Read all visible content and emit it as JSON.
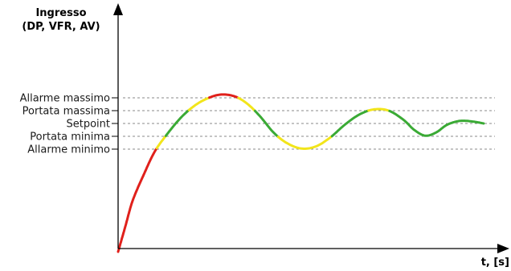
{
  "y_axis": {
    "title_line1": "Ingresso",
    "title_line2": "(DP, VFR, AV)"
  },
  "x_axis": {
    "title": "t, [s]"
  },
  "thresholds": [
    {
      "key": "allarme-massimo",
      "label": "Allarme massimo",
      "value": 4
    },
    {
      "key": "portata-massima",
      "label": "Portata massima",
      "value": 3
    },
    {
      "key": "setpoint",
      "label": "Setpoint",
      "value": 2
    },
    {
      "key": "portata-minima",
      "label": "Portata minima",
      "value": 1
    },
    {
      "key": "allarme-minimo",
      "label": "Allarme minimo",
      "value": 0
    }
  ],
  "zone_colors": {
    "alarm": "#e0201b",
    "warning": "#f2e51b",
    "normal": "#3aaa35"
  },
  "signal": [
    [
      0.0,
      -8.0
    ],
    [
      0.2,
      -6.0
    ],
    [
      0.4,
      -4.0
    ],
    [
      0.7,
      -2.0
    ],
    [
      1.0,
      -0.2
    ],
    [
      1.35,
      1.2
    ],
    [
      1.7,
      2.4
    ],
    [
      2.05,
      3.3
    ],
    [
      2.4,
      3.9
    ],
    [
      2.8,
      4.25
    ],
    [
      3.2,
      4.1
    ],
    [
      3.55,
      3.5
    ],
    [
      3.9,
      2.5
    ],
    [
      4.25,
      1.3
    ],
    [
      4.6,
      0.5
    ],
    [
      5.0,
      0.05
    ],
    [
      5.4,
      0.2
    ],
    [
      5.8,
      0.9
    ],
    [
      6.2,
      1.9
    ],
    [
      6.6,
      2.7
    ],
    [
      7.0,
      3.1
    ],
    [
      7.4,
      3.0
    ],
    [
      7.8,
      2.3
    ],
    [
      8.1,
      1.5
    ],
    [
      8.4,
      1.05
    ],
    [
      8.7,
      1.3
    ],
    [
      9.0,
      1.9
    ],
    [
      9.35,
      2.2
    ],
    [
      9.7,
      2.15
    ],
    [
      10.0,
      2.0
    ]
  ]
}
